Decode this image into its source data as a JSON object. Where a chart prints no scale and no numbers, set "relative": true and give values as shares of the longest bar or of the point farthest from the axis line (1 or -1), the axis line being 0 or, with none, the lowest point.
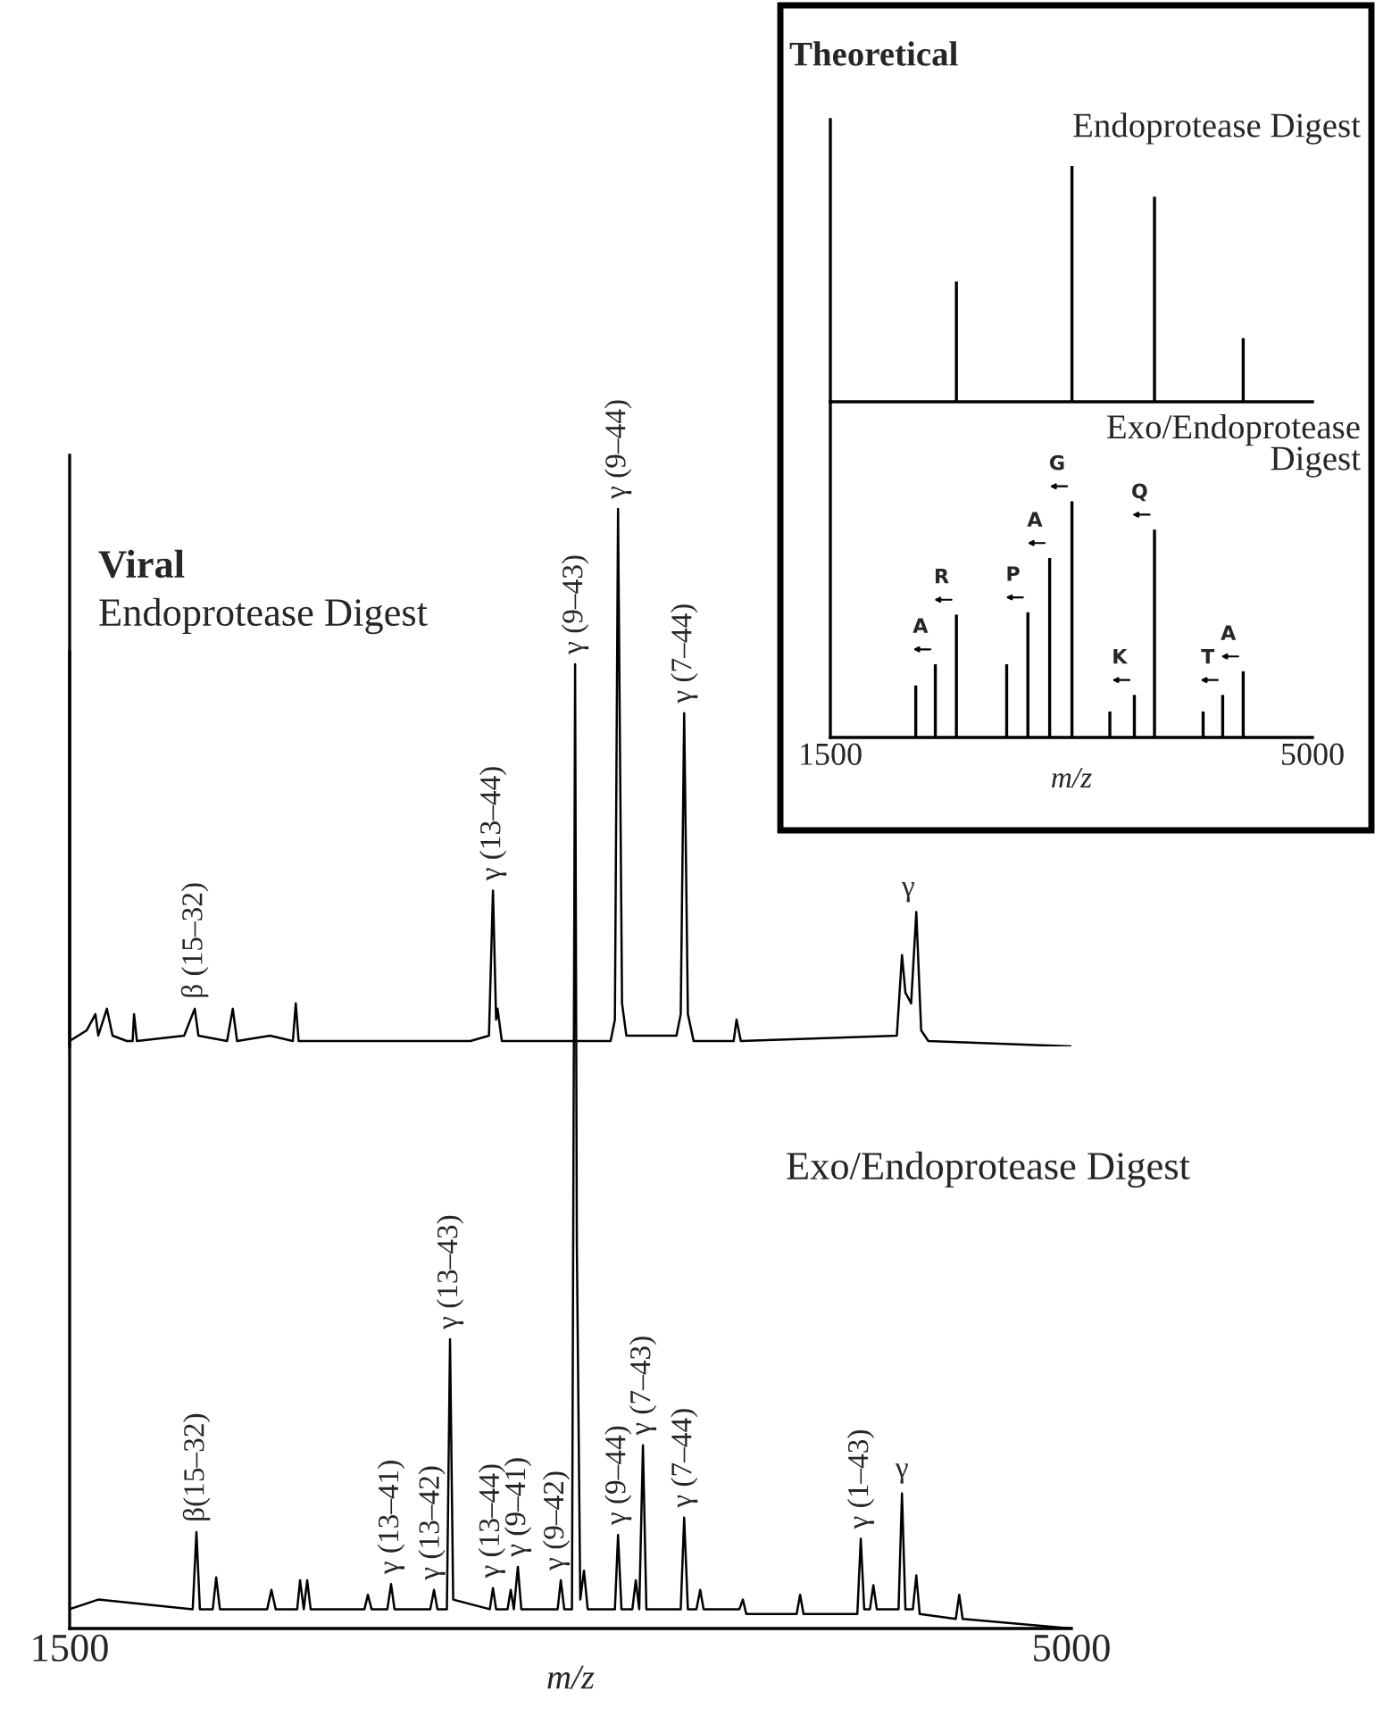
{
  "chart_data": [
    {
      "type": "line",
      "title": "Viral",
      "subtitle": "Endoprotease Digest",
      "relative": true,
      "xlim": [
        1500,
        5000
      ],
      "tick_labels": false,
      "series": [
        {
          "color": "#000000",
          "x": [
            1500,
            1560,
            1590,
            1600,
            1630,
            1650,
            1700,
            1720,
            1725,
            1735,
            1900,
            1937,
            1950,
            2050,
            2070,
            2085,
            2200,
            2280,
            2290,
            2300,
            2900,
            2965,
            2979,
            2990,
            2995,
            3010,
            3390,
            3405,
            3416,
            3430,
            3445,
            3620,
            3635,
            3647,
            3660,
            3680,
            3820,
            3830,
            3845,
            4390,
            4408,
            4420,
            4440,
            4458,
            4475,
            4500,
            5000
          ],
          "values": [
            0.01,
            0.03,
            0.06,
            0.02,
            0.07,
            0.02,
            0.01,
            0.01,
            0.06,
            0.01,
            0.02,
            0.07,
            0.02,
            0.01,
            0.07,
            0.01,
            0.02,
            0.01,
            0.08,
            0.01,
            0.01,
            0.02,
            0.29,
            0.05,
            0.07,
            0.01,
            0.01,
            0.05,
            1.0,
            0.08,
            0.02,
            0.02,
            0.06,
            0.62,
            0.06,
            0.01,
            0.01,
            0.05,
            0.01,
            0.02,
            0.17,
            0.1,
            0.08,
            0.25,
            0.03,
            0.01,
            0.0
          ]
        }
      ],
      "annotations": [
        {
          "text": "β (15–32)",
          "x": 1937,
          "y": 0.07
        },
        {
          "text": "γ (13–44)",
          "x": 2979,
          "y": 0.29
        },
        {
          "text": "γ (9–44)",
          "x": 3416,
          "y": 1.0
        },
        {
          "text": "γ (7–44)",
          "x": 3647,
          "y": 0.62
        },
        {
          "text": "γ",
          "x": 4430,
          "y": 0.25
        }
      ]
    },
    {
      "type": "line",
      "title": "Exo/Endoprotease Digest",
      "relative": true,
      "xlim": [
        1500,
        5000
      ],
      "xticks": [
        1500,
        5000
      ],
      "xlabel": "m/z",
      "series": [
        {
          "color": "#000000",
          "x": [
            1500,
            1600,
            1930,
            1943,
            1955,
            2000,
            2012,
            2025,
            2190,
            2205,
            2220,
            2295,
            2305,
            2318,
            2330,
            2342,
            2530,
            2542,
            2555,
            2610,
            2623,
            2635,
            2760,
            2773,
            2785,
            2818,
            2829,
            2840,
            2968,
            2979,
            2990,
            3030,
            3041,
            3052,
            3066,
            3078,
            3205,
            3216,
            3228,
            3255,
            3266,
            3272,
            3284,
            3297,
            3310,
            3405,
            3416,
            3428,
            3466,
            3478,
            3490,
            3503,
            3515,
            3635,
            3647,
            3660,
            3690,
            3703,
            3715,
            3840,
            3852,
            3864,
            4040,
            4052,
            4064,
            4252,
            4264,
            4276,
            4296,
            4308,
            4320,
            4396,
            4408,
            4420,
            4446,
            4458,
            4470,
            4596,
            4608,
            4620,
            5000
          ],
          "values": [
            0.02,
            0.03,
            0.02,
            0.1,
            0.02,
            0.02,
            0.053,
            0.02,
            0.02,
            0.04,
            0.02,
            0.02,
            0.05,
            0.02,
            0.05,
            0.02,
            0.02,
            0.035,
            0.02,
            0.02,
            0.046,
            0.02,
            0.02,
            0.04,
            0.02,
            0.02,
            0.3,
            0.03,
            0.02,
            0.042,
            0.02,
            0.02,
            0.04,
            0.02,
            0.064,
            0.02,
            0.02,
            0.05,
            0.02,
            0.02,
            1.0,
            0.4,
            0.03,
            0.06,
            0.02,
            0.02,
            0.097,
            0.02,
            0.02,
            0.05,
            0.02,
            0.19,
            0.02,
            0.02,
            0.115,
            0.02,
            0.02,
            0.04,
            0.02,
            0.02,
            0.03,
            0.015,
            0.015,
            0.035,
            0.015,
            0.015,
            0.093,
            0.02,
            0.02,
            0.045,
            0.02,
            0.02,
            0.14,
            0.02,
            0.02,
            0.055,
            0.015,
            0.01,
            0.035,
            0.01,
            0.0
          ]
        }
      ],
      "annotations": [
        {
          "text": "β(15–32)",
          "x": 1943,
          "y": 0.1
        },
        {
          "text": "γ (13–41)",
          "x": 2623,
          "y": 0.046
        },
        {
          "text": "γ (13–42)",
          "x": 2765,
          "y": 0.04
        },
        {
          "text": "γ (13–43)",
          "x": 2829,
          "y": 0.3
        },
        {
          "text": "γ (13–44)",
          "x": 2975,
          "y": 0.042
        },
        {
          "text": "γ (9–41)",
          "x": 3066,
          "y": 0.064
        },
        {
          "text": "γ (9–42)",
          "x": 3200,
          "y": 0.05
        },
        {
          "text": "γ (9–43)",
          "x": 3266,
          "y": 1.0
        },
        {
          "text": "γ (9–44)",
          "x": 3416,
          "y": 0.097
        },
        {
          "text": "γ (7–43)",
          "x": 3503,
          "y": 0.19
        },
        {
          "text": "γ (7–44)",
          "x": 3647,
          "y": 0.115
        },
        {
          "text": "γ (1–43)",
          "x": 4264,
          "y": 0.093
        },
        {
          "text": "γ",
          "x": 4408,
          "y": 0.14
        }
      ]
    },
    {
      "type": "bar",
      "title": "Theoretical",
      "subtitle": "Endoprotease Digest",
      "relative": true,
      "xlim": [
        1500,
        5000
      ],
      "tick_labels": false,
      "x": [
        2415,
        3254,
        3853,
        4497
      ],
      "values": [
        0.51,
        1.0,
        0.87,
        0.27
      ],
      "color": "#000000"
    },
    {
      "type": "bar",
      "title": "Exo/Endoprotease Digest",
      "relative": true,
      "xlim": [
        1500,
        5000
      ],
      "xticks": [
        1500,
        5000
      ],
      "xlabel": "m/z",
      "x": [
        2120,
        2262,
        2415,
        2780,
        2934,
        3092,
        3254,
        3529,
        3707,
        3853,
        4206,
        4348,
        4497
      ],
      "values": [
        0.22,
        0.31,
        0.52,
        0.31,
        0.53,
        0.76,
        1.0,
        0.11,
        0.18,
        0.88,
        0.11,
        0.18,
        0.28
      ],
      "color": "#000000",
      "annotations": [
        {
          "text": "A",
          "x": 2262,
          "y": 0.31
        },
        {
          "text": "R",
          "x": 2415,
          "y": 0.52
        },
        {
          "text": "P",
          "x": 2934,
          "y": 0.53
        },
        {
          "text": "A",
          "x": 3092,
          "y": 0.76
        },
        {
          "text": "G",
          "x": 3254,
          "y": 1.0
        },
        {
          "text": "K",
          "x": 3707,
          "y": 0.18
        },
        {
          "text": "Q",
          "x": 3853,
          "y": 0.88
        },
        {
          "text": "T",
          "x": 4348,
          "y": 0.18
        },
        {
          "text": "A",
          "x": 4497,
          "y": 0.28
        }
      ]
    }
  ]
}
